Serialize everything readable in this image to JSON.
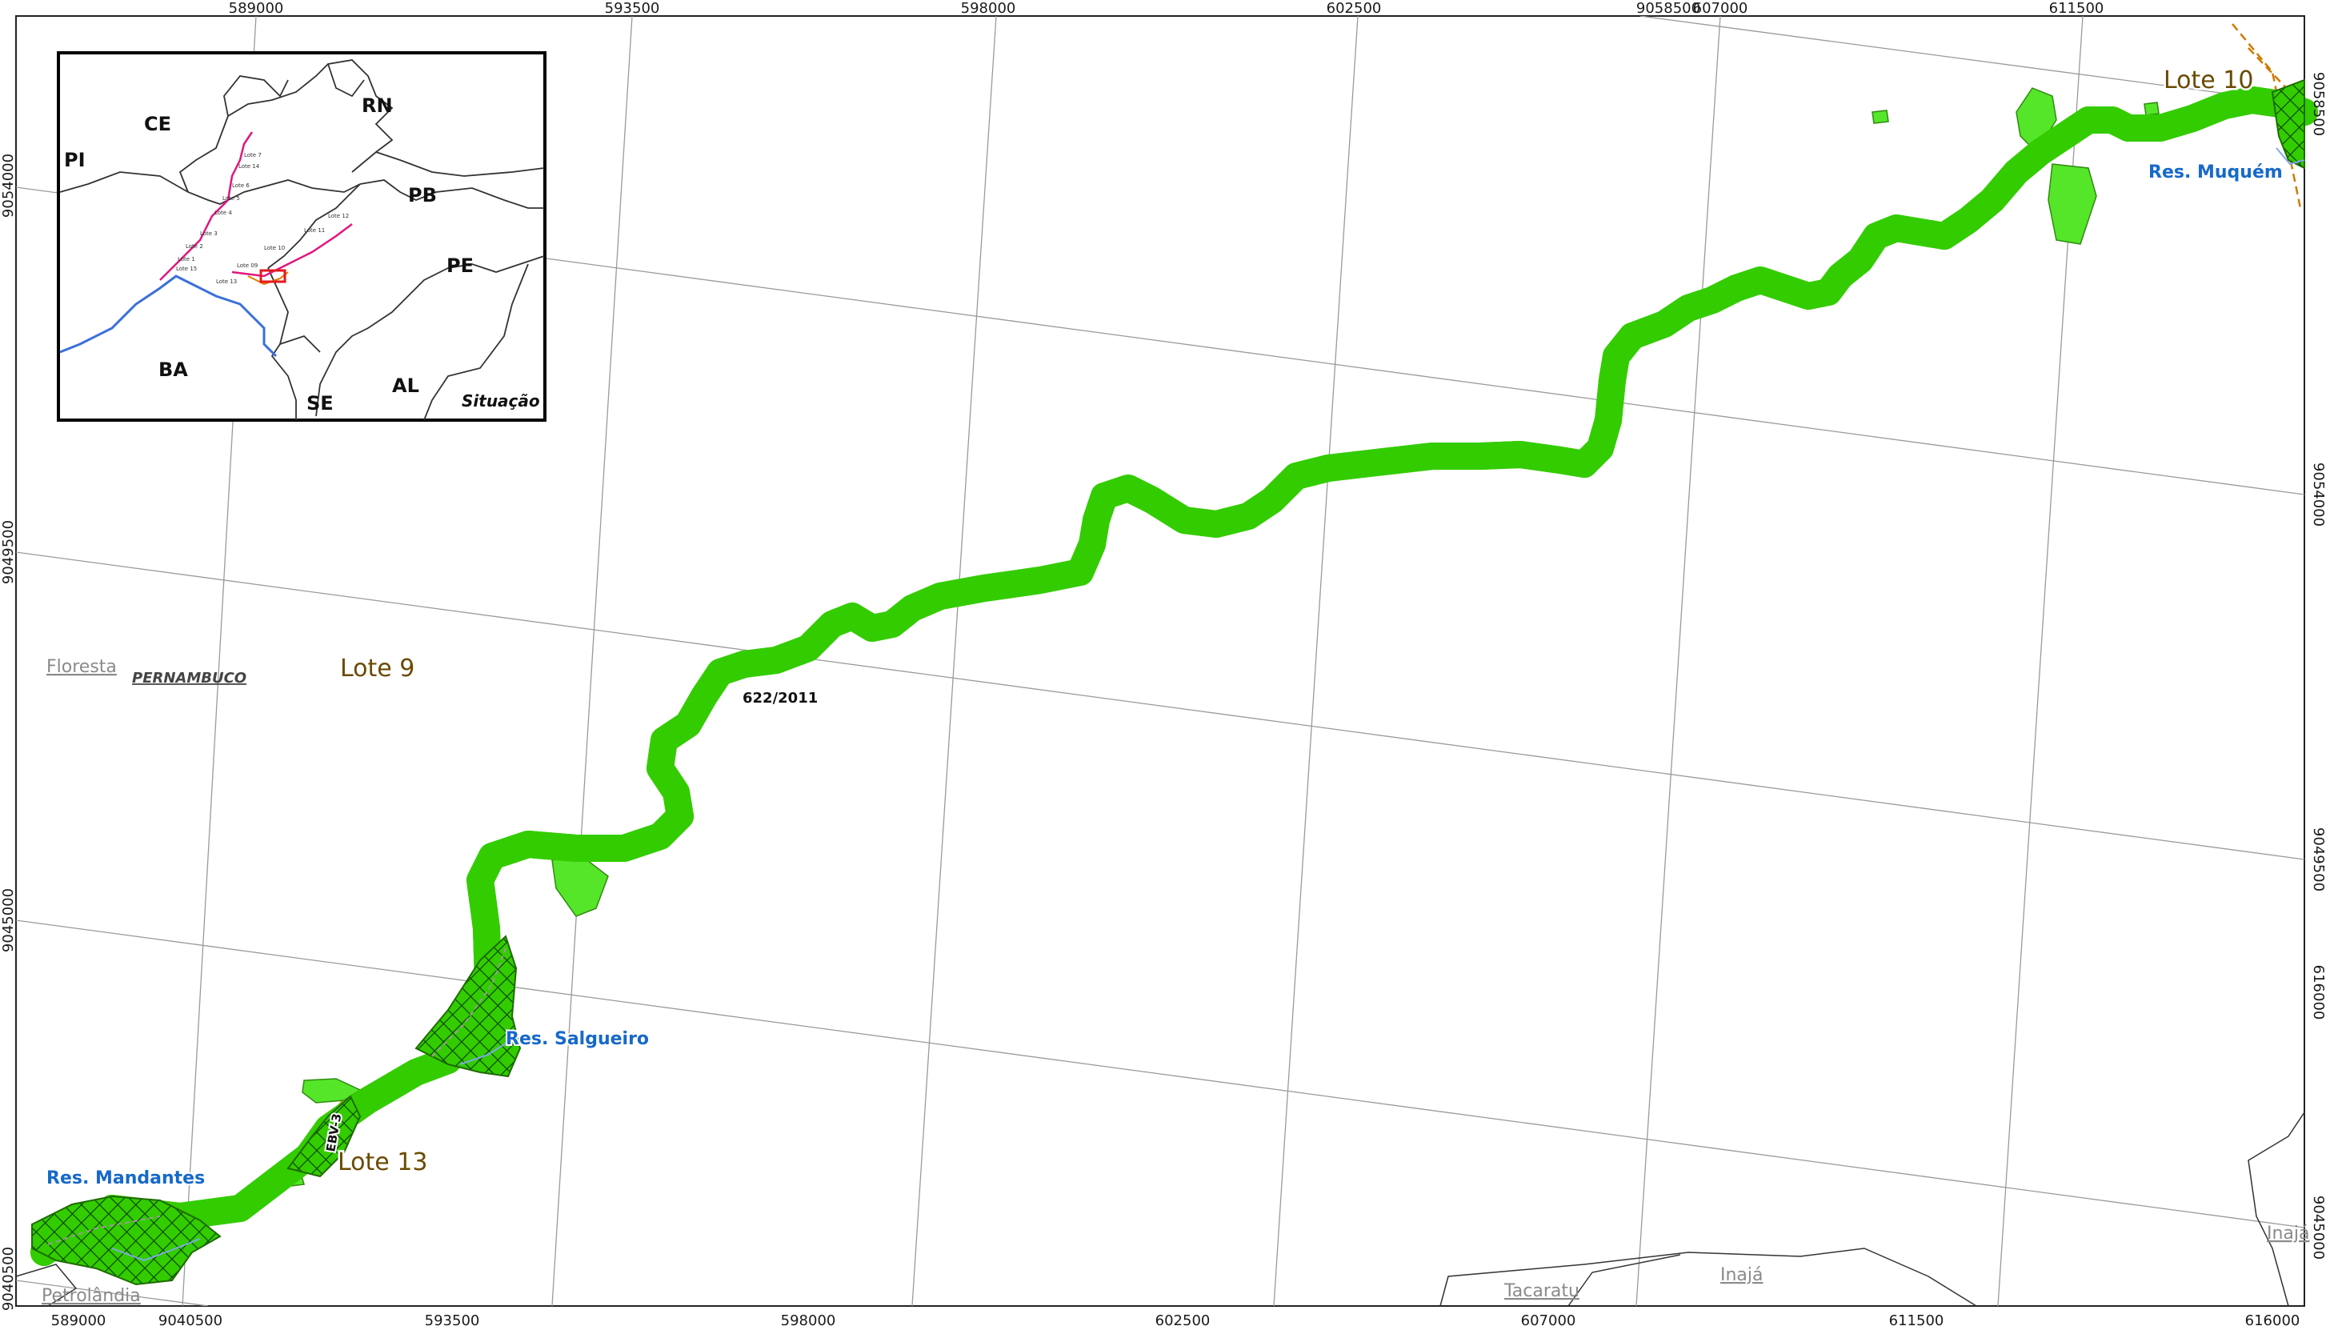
{
  "grid_labels": {
    "top_x": [
      "589000",
      "593500",
      "598000",
      "602500",
      "9058500",
      "607000",
      "611500"
    ],
    "bottom_x": [
      "589000",
      "9040500",
      "593500",
      "598000",
      "602500",
      "607000",
      "611500",
      "616000"
    ],
    "left_y": [
      "9054000",
      "9049500",
      "9045000",
      "9040500"
    ],
    "right_y": [
      "9058500",
      "9054000",
      "9049500",
      "616000",
      "9045000"
    ]
  },
  "labels": {
    "lote_9": "Lote 9",
    "lote_10": "Lote 10",
    "lote_13": "Lote 13",
    "res_mandantes": "Res. Mandantes",
    "res_salgueiro": "Res. Salgueiro",
    "res_muquem": "Res. Muquém",
    "route_code": "622/2011",
    "ebv": "EBV-3",
    "floresta": "Floresta",
    "pernambuco": "PERNAMBUCO",
    "petrolandia": "Petrolândia",
    "tacaratu": "Tacaratu",
    "inaja_1": "Inajá",
    "inaja_2": "Inajá"
  },
  "inset": {
    "title": "Situação",
    "states": [
      "PI",
      "CE",
      "RN",
      "PB",
      "PE",
      "BA",
      "SE",
      "AL"
    ],
    "lote_labels": [
      "Lote 7",
      "Lote 14",
      "Lote 6",
      "Lote 5",
      "Lote 4",
      "Lote 3",
      "Lote 2",
      "Lote 1",
      "Lote 15",
      "Lote 13",
      "Lote 09",
      "Lote 10",
      "Lote 11",
      "Lote 12"
    ]
  },
  "colors": {
    "corridor_fill": "#33cc00",
    "corridor_edge": "#1e6b00",
    "hatch": "#0a3d00",
    "bright_green": "#55e629",
    "grid": "#9a9a9a",
    "reservoir_text": "#1769c9",
    "lote_text": "#6b4a00",
    "inset_route": "#e0177f",
    "inset_river": "#3a6fd8",
    "inset_frame_red": "#e31a1c"
  }
}
